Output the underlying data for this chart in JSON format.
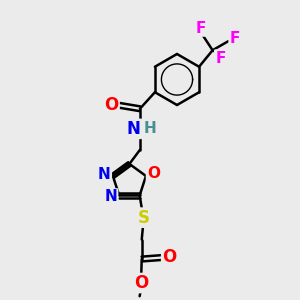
{
  "bg_color": "#ebebeb",
  "atom_colors": {
    "C": "#000000",
    "H": "#4a9090",
    "N": "#0000ee",
    "O": "#ff0000",
    "S": "#cccc00",
    "F": "#ff00ff"
  },
  "bond_color": "#000000",
  "bond_width": 1.8,
  "font_size": 11
}
